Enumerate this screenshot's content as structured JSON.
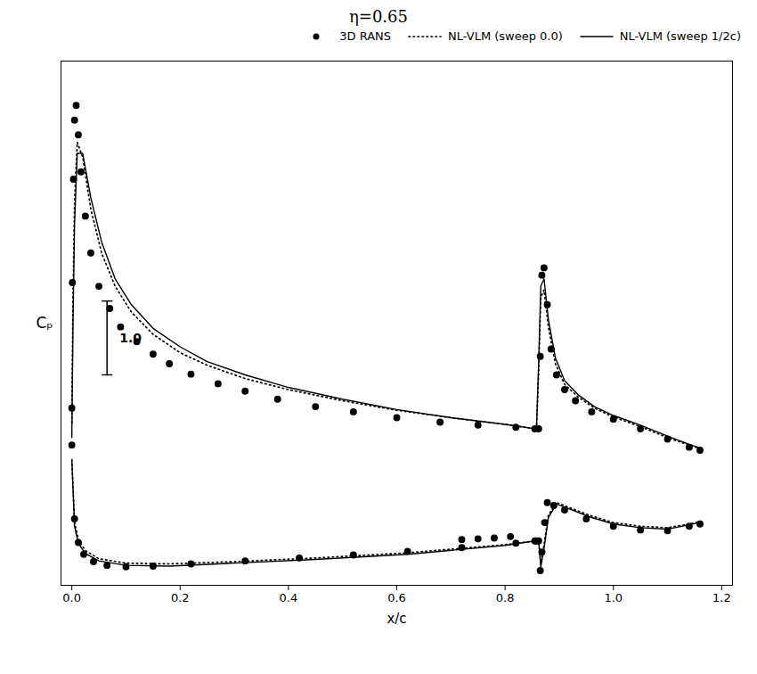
{
  "chart_data": {
    "type": "line",
    "title": "η=0.65",
    "xlabel": "x/c",
    "ylabel": "Cₚ",
    "xlim": [
      -0.02,
      1.22
    ],
    "ylim": [
      1.3,
      -5.8
    ],
    "xticks": [
      {
        "value": 0,
        "label": "0.0"
      },
      0.2,
      0.4,
      0.6,
      0.8,
      {
        "value": 1,
        "label": "1.0"
      },
      1.2
    ],
    "yticks": [],
    "tick_labels": "x",
    "legend": "upper right",
    "series": [
      {
        "name": "3D RANS",
        "type": "scatter",
        "marker": "o",
        "color": "#000000",
        "x": [
          0.0,
          0.001,
          0.003,
          0.005,
          0.008,
          0.012,
          0.017,
          0.025,
          0.035,
          0.05,
          0.07,
          0.09,
          0.12,
          0.15,
          0.18,
          0.22,
          0.27,
          0.32,
          0.38,
          0.45,
          0.52,
          0.6,
          0.68,
          0.75,
          0.82,
          0.855,
          0.0,
          0.005,
          0.012,
          0.022,
          0.04,
          0.065,
          0.1,
          0.15,
          0.22,
          0.32,
          0.42,
          0.52,
          0.62,
          0.72,
          0.82,
          0.855,
          0.862,
          0.865,
          0.868,
          0.872,
          0.878,
          0.885,
          0.895,
          0.91,
          0.93,
          0.96,
          1.0,
          1.05,
          1.1,
          1.14,
          1.16,
          0.858,
          0.862,
          0.865,
          0.868,
          0.873,
          0.878,
          0.89,
          0.91,
          0.95,
          1.0,
          1.05,
          1.1,
          1.14,
          1.16,
          0.72,
          0.75,
          0.78,
          0.81
        ],
        "values": [
          -1.1,
          -2.8,
          -4.2,
          -5.0,
          -5.2,
          -4.8,
          -4.3,
          -3.7,
          -3.2,
          -2.75,
          -2.45,
          -2.2,
          -2.0,
          -1.83,
          -1.7,
          -1.56,
          -1.43,
          -1.33,
          -1.22,
          -1.12,
          -1.05,
          -0.97,
          -0.91,
          -0.87,
          -0.84,
          -0.82,
          -0.6,
          0.4,
          0.72,
          0.88,
          0.98,
          1.03,
          1.05,
          1.04,
          1.01,
          0.97,
          0.93,
          0.89,
          0.84,
          0.79,
          0.73,
          0.7,
          -0.82,
          -1.8,
          -2.9,
          -3.0,
          -2.5,
          -1.9,
          -1.55,
          -1.35,
          -1.2,
          -1.05,
          -0.95,
          -0.82,
          -0.68,
          -0.57,
          -0.53,
          0.7,
          0.7,
          1.1,
          0.85,
          0.45,
          0.18,
          0.22,
          0.28,
          0.4,
          0.5,
          0.55,
          0.56,
          0.5,
          0.47,
          0.68,
          0.67,
          0.66,
          0.64
        ]
      },
      {
        "name": "NL-VLM (sweep 0.0)",
        "type": "line",
        "line_style": "dotted",
        "color": "#000000",
        "x": [
          0.0,
          0.002,
          0.005,
          0.01,
          0.02,
          0.035,
          0.055,
          0.08,
          0.11,
          0.15,
          0.2,
          0.25,
          0.32,
          0.4,
          0.5,
          0.6,
          0.7,
          0.8,
          0.855,
          null,
          0.0,
          0.005,
          0.012,
          0.025,
          0.05,
          0.1,
          0.18,
          0.3,
          0.45,
          0.62,
          0.8,
          0.855,
          null,
          0.858,
          0.862,
          0.866,
          0.872,
          0.88,
          0.893,
          0.91,
          0.935,
          0.965,
          1.0,
          1.05,
          1.1,
          1.14,
          1.16,
          null,
          0.858,
          0.862,
          0.866,
          0.872,
          0.88,
          0.895,
          0.92,
          0.955,
          1.0,
          1.05,
          1.1,
          1.14,
          1.16
        ],
        "values": [
          -0.9,
          -2.5,
          -3.9,
          -4.7,
          -4.5,
          -3.8,
          -3.2,
          -2.75,
          -2.4,
          -2.1,
          -1.85,
          -1.68,
          -1.5,
          -1.35,
          -1.2,
          -1.07,
          -0.97,
          -0.88,
          -0.82,
          null,
          -0.4,
          0.45,
          0.68,
          0.83,
          0.94,
          1.0,
          1.01,
          0.98,
          0.93,
          0.86,
          0.75,
          0.7,
          null,
          -0.82,
          -1.6,
          -2.6,
          -2.7,
          -2.2,
          -1.7,
          -1.42,
          -1.25,
          -1.1,
          -0.98,
          -0.85,
          -0.7,
          -0.6,
          -0.55,
          null,
          0.7,
          0.7,
          1.0,
          0.75,
          0.35,
          0.18,
          0.25,
          0.35,
          0.45,
          0.5,
          0.52,
          0.47,
          0.44
        ]
      },
      {
        "name": "NL-VLM (sweep 1/2c)",
        "type": "line",
        "line_style": "solid",
        "color": "#000000",
        "x": [
          0.0,
          0.002,
          0.005,
          0.01,
          0.02,
          0.035,
          0.055,
          0.08,
          0.11,
          0.15,
          0.2,
          0.25,
          0.32,
          0.4,
          0.5,
          0.6,
          0.7,
          0.8,
          0.855,
          null,
          0.0,
          0.005,
          0.012,
          0.025,
          0.05,
          0.1,
          0.18,
          0.3,
          0.45,
          0.62,
          0.8,
          0.855,
          null,
          0.858,
          0.862,
          0.866,
          0.872,
          0.88,
          0.893,
          0.91,
          0.935,
          0.965,
          1.0,
          1.05,
          1.1,
          1.14,
          1.16,
          null,
          0.858,
          0.862,
          0.866,
          0.872,
          0.88,
          0.895,
          0.92,
          0.955,
          1.0,
          1.05,
          1.1,
          1.14,
          1.16
        ],
        "values": [
          -0.7,
          -2.2,
          -3.6,
          -4.55,
          -4.55,
          -3.95,
          -3.35,
          -2.85,
          -2.5,
          -2.18,
          -1.93,
          -1.73,
          -1.55,
          -1.38,
          -1.22,
          -1.08,
          -0.97,
          -0.88,
          -0.82,
          null,
          -0.4,
          0.5,
          0.73,
          0.87,
          0.97,
          1.03,
          1.04,
          1.0,
          0.95,
          0.88,
          0.76,
          0.7,
          null,
          -0.82,
          -1.7,
          -2.75,
          -2.85,
          -2.3,
          -1.78,
          -1.47,
          -1.28,
          -1.12,
          -1.0,
          -0.87,
          -0.72,
          -0.61,
          -0.56,
          null,
          0.7,
          0.7,
          1.05,
          0.8,
          0.38,
          0.2,
          0.27,
          0.37,
          0.47,
          0.52,
          0.54,
          0.48,
          0.45
        ]
      }
    ],
    "scale_bar": {
      "x": 0.065,
      "top": -1.55,
      "bottom": -2.55,
      "label": "1.0"
    }
  }
}
